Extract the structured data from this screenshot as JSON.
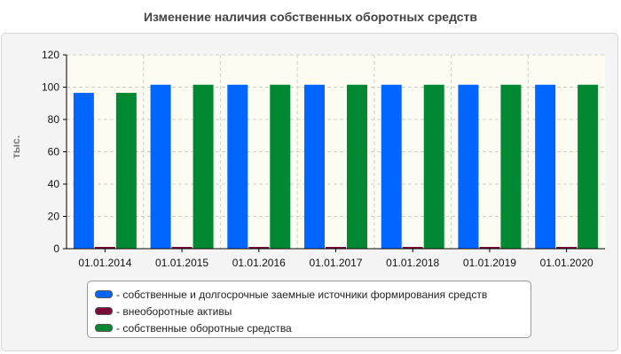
{
  "chart_data": {
    "type": "bar",
    "title": "Изменение наличия собственных оборотных средств",
    "ylabel": "тыс.",
    "xlabel": "",
    "ylim": [
      0,
      120
    ],
    "yticks": [
      0,
      20,
      40,
      60,
      80,
      100,
      120
    ],
    "categories": [
      "01.01.2014",
      "01.01.2015",
      "01.01.2016",
      "01.01.2017",
      "01.01.2018",
      "01.01.2019",
      "01.01.2020"
    ],
    "series": [
      {
        "name": "- собственные и долгосрочные заемные источники формирования средств",
        "color": "#0066ff",
        "values": [
          96.5,
          101.5,
          101.5,
          101.5,
          101.5,
          101.5,
          101.5
        ]
      },
      {
        "name": "- внеоборотные активы",
        "color": "#7a0a3a",
        "values": [
          0.5,
          0.5,
          0.5,
          0.5,
          0.5,
          0.5,
          0.5
        ]
      },
      {
        "name": "- собственные оборотные средства",
        "color": "#008833",
        "values": [
          96.5,
          101.5,
          101.5,
          101.5,
          101.5,
          101.5,
          101.5
        ]
      }
    ],
    "grid": true,
    "legend_position": "bottom"
  }
}
